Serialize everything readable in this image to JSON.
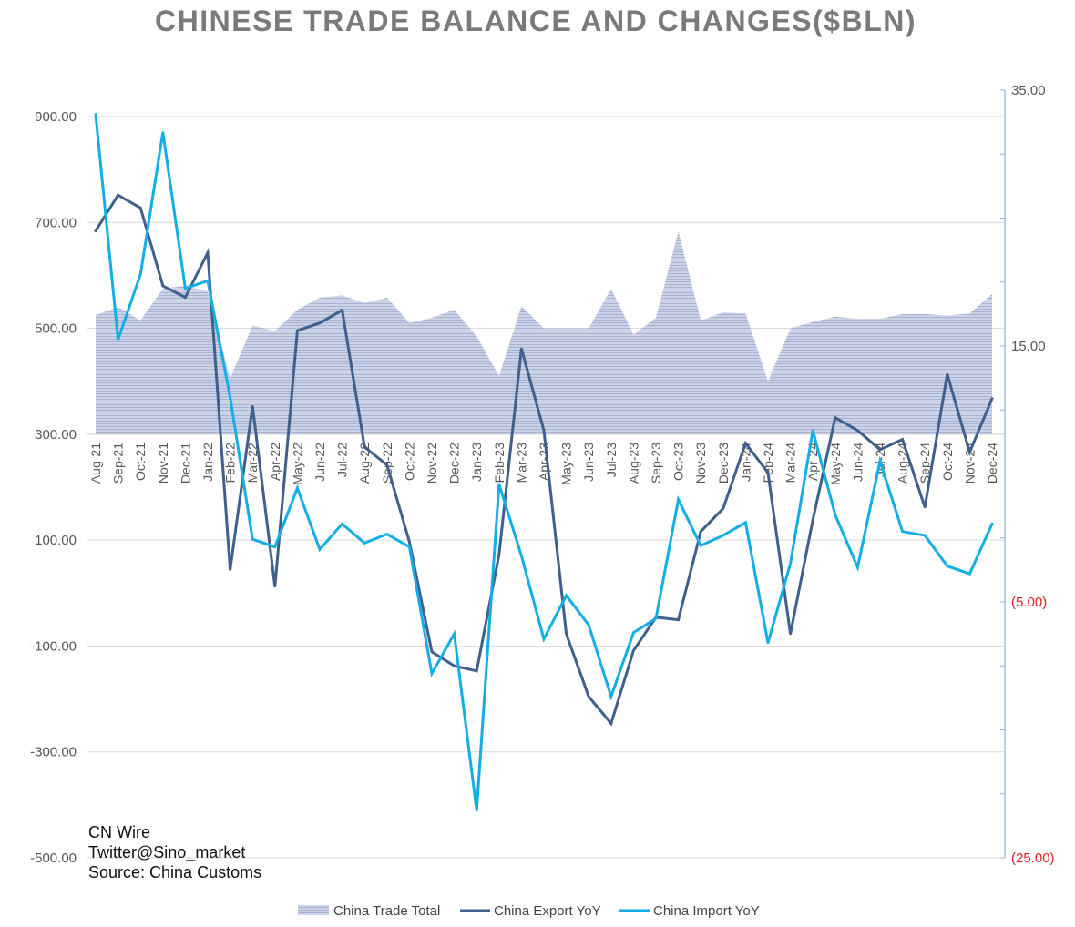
{
  "chart_data": {
    "type": "line",
    "title": "CHINESE TRADE BALANCE AND CHANGES($BLN)",
    "categories": [
      "Aug-21",
      "Sep-21",
      "Oct-21",
      "Nov-21",
      "Dec-21",
      "Jan-22",
      "Feb-22",
      "Mar-22",
      "Apr-22",
      "May-22",
      "Jun-22",
      "Jul-22",
      "Aug-22",
      "Sep-22",
      "Oct-22",
      "Nov-22",
      "Dec-22",
      "Jan-23",
      "Feb-23",
      "Mar-23",
      "Apr-23",
      "May-23",
      "Jun-23",
      "Jul-23",
      "Aug-23",
      "Sep-23",
      "Oct-23",
      "Nov-23",
      "Dec-23",
      "Jan-24",
      "Feb-24",
      "Mar-24",
      "Apr-24",
      "May-24",
      "Jun-24",
      "Jul-24",
      "Aug-24",
      "Sep-24",
      "Oct-24",
      "Nov-24",
      "Dec-24"
    ],
    "left_axis": {
      "ylim": [
        -500,
        900
      ],
      "ticks": [
        "900.00",
        "700.00",
        "500.00",
        "300.00",
        "100.00",
        "-100.00",
        "-300.00",
        "-500.00"
      ]
    },
    "right_axis": {
      "ylim": [
        -25,
        35
      ],
      "ticks": [
        "35.00",
        "15.00",
        "(5.00)",
        "(25.00)"
      ],
      "negative_color": "#e02020",
      "positive_color": "#555555"
    },
    "series": [
      {
        "name": "China Trade Total",
        "kind": "area",
        "axis": "left",
        "color": "#b9c2dc",
        "values": [
          525,
          540,
          515,
          575,
          580,
          570,
          405,
          505,
          495,
          535,
          558,
          562,
          548,
          558,
          510,
          520,
          535,
          485,
          410,
          542,
          500,
          500,
          500,
          575,
          488,
          520,
          683,
          515,
          530,
          528,
          400,
          500,
          512,
          522,
          518,
          518,
          527,
          527,
          524,
          528,
          565
        ]
      },
      {
        "name": "China Export YoY",
        "kind": "line",
        "axis": "right",
        "color": "#3f5f8c",
        "values": [
          24.0,
          26.8,
          25.8,
          19.7,
          18.8,
          22.3,
          -2.5,
          10.3,
          -3.8,
          16.2,
          16.8,
          17.8,
          7.1,
          5.7,
          -0.3,
          -8.9,
          -10.0,
          -10.4,
          -1.3,
          14.8,
          8.4,
          -7.5,
          -12.4,
          -14.5,
          -8.8,
          -6.2,
          -6.4,
          0.5,
          2.3,
          7.4,
          5.1,
          -7.5,
          1.4,
          9.4,
          8.4,
          6.9,
          7.7,
          2.4,
          12.8,
          6.7,
          10.9
        ]
      },
      {
        "name": "China Import YoY",
        "kind": "line",
        "axis": "right",
        "color": "#14aee6",
        "values": [
          33.1,
          15.5,
          20.6,
          31.7,
          19.5,
          20.1,
          11.0,
          -0.1,
          -0.7,
          3.9,
          -0.9,
          1.1,
          -0.4,
          0.3,
          -0.7,
          -10.6,
          -7.5,
          -21.3,
          4.2,
          -1.4,
          -7.9,
          -4.5,
          -6.8,
          -12.4,
          -7.4,
          -6.3,
          3.0,
          -0.6,
          0.2,
          1.2,
          -8.2,
          -2.0,
          8.4,
          1.8,
          -2.3,
          6.0,
          0.5,
          0.2,
          -2.2,
          -2.8,
          1.1
        ]
      }
    ],
    "annotations": [
      "CN Wire",
      "Twitter@Sino_market",
      "Source: China Customs"
    ],
    "legend_position": "bottom",
    "grid": true
  }
}
